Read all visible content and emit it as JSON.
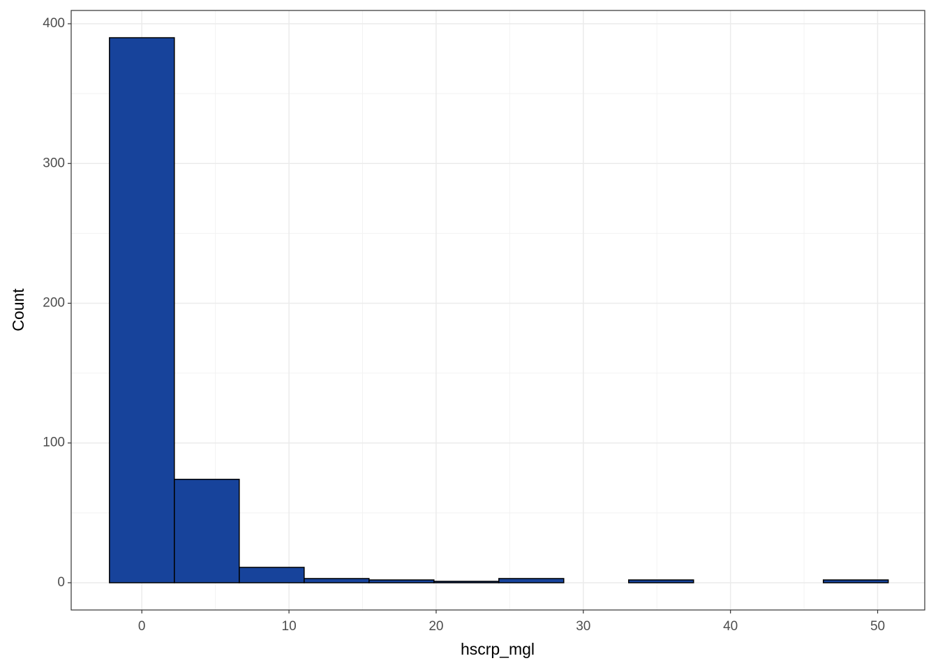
{
  "chart_data": {
    "type": "histogram",
    "x_label": "hscrp_mgl",
    "y_label": "Count",
    "bins": [
      -2.2,
      2.21,
      6.62,
      11.03,
      15.44,
      19.85,
      24.26,
      28.67,
      33.08,
      37.49,
      41.9,
      46.31,
      50.72
    ],
    "counts": [
      390,
      74,
      11,
      3,
      2,
      1,
      3,
      0,
      2,
      0,
      0,
      2
    ],
    "color": "#17439b",
    "xlim": [
      -4.8,
      53.2
    ],
    "xticks": [
      0,
      10,
      20,
      30,
      40,
      50
    ],
    "ylim": [
      -19.5,
      409.5
    ],
    "yticks": [
      0,
      100,
      200,
      300,
      400
    ],
    "grid": true
  }
}
